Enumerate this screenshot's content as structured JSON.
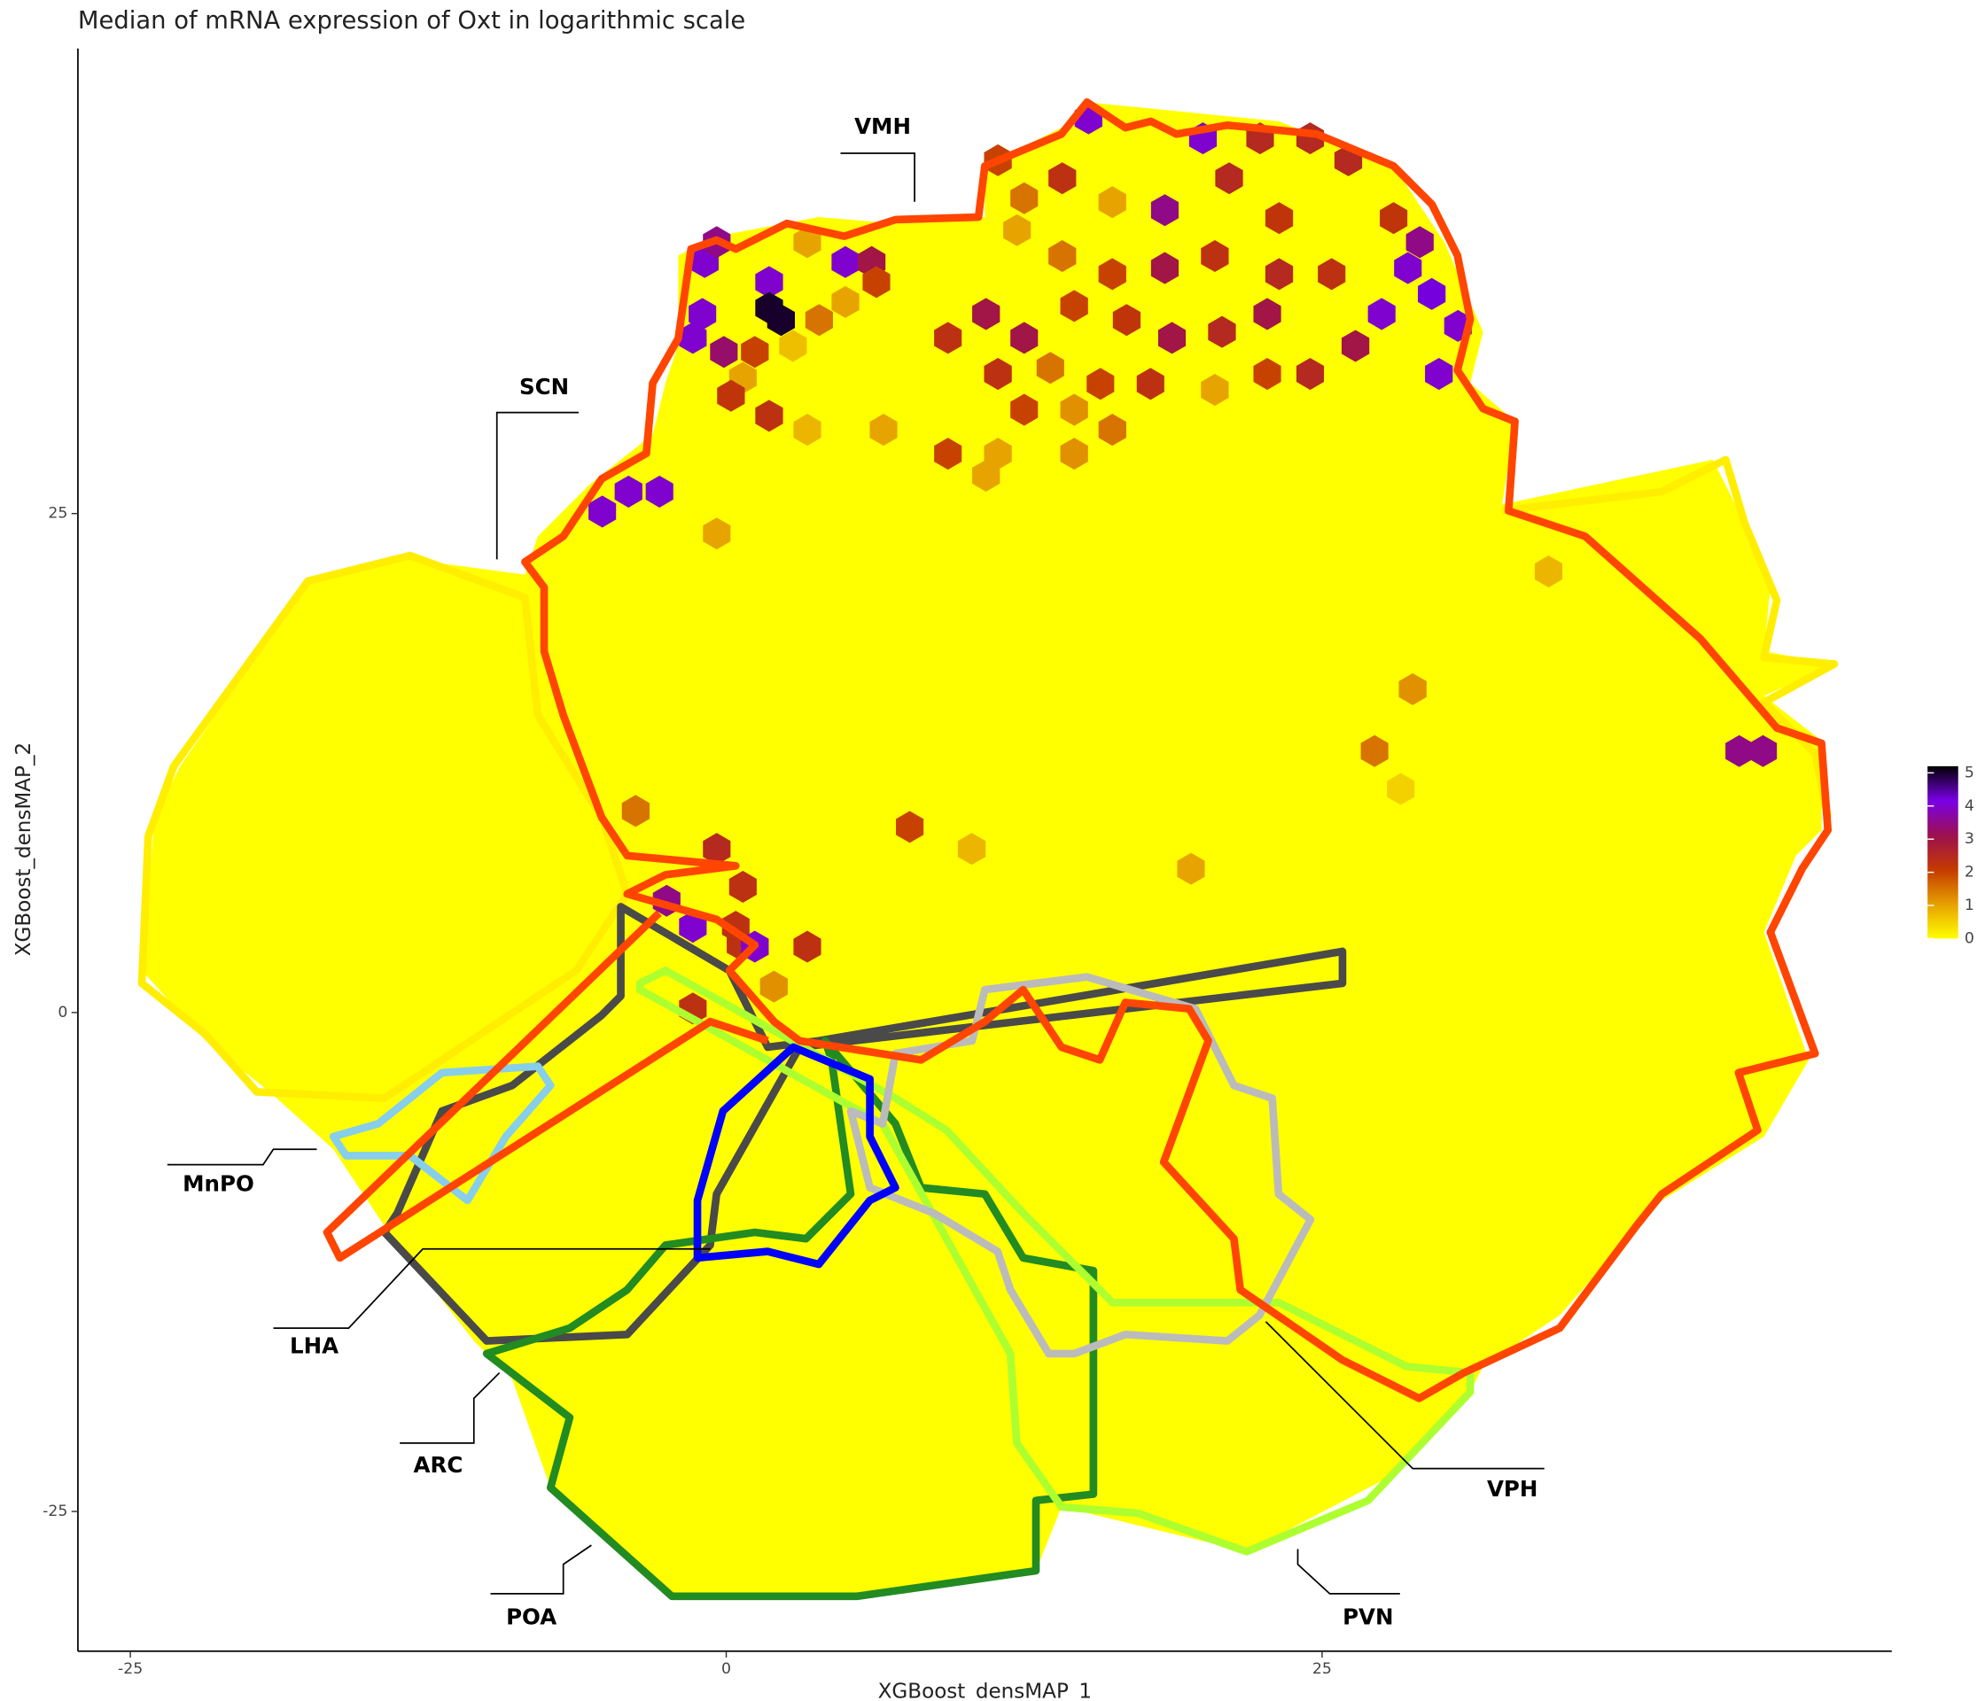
{
  "chart_data": {
    "type": "hexbin",
    "title": "Median of mRNA expression of Oxt in logarithmic scale",
    "x_label": "XGBoost_densMAP_1",
    "y_label": "XGBoost_densMAP_2",
    "xlim": [
      -27.2,
      48.9
    ],
    "ylim": [
      -32.0,
      48.3
    ],
    "xticks": [
      -25,
      0,
      25
    ],
    "yticks": [
      -25,
      0,
      25
    ],
    "clim": [
      0,
      5.2
    ],
    "cticks": [
      0,
      1,
      2,
      3,
      4,
      5
    ],
    "colors": [
      "#ffff00",
      "#e6a000",
      "#c43a00",
      "#9c1050",
      "#7a00e6",
      "#000000"
    ],
    "annotations": [
      {
        "text": "VMH"
      },
      {
        "text": "SCN"
      },
      {
        "text": "MnPO"
      },
      {
        "text": "LHA"
      },
      {
        "text": "ARC"
      },
      {
        "text": "POA"
      },
      {
        "text": "VPH"
      },
      {
        "text": "PVN"
      }
    ],
    "x": [
      15.2,
      20.0,
      22.4,
      24.5,
      26.1,
      11.4,
      12.5,
      14.1,
      16.2,
      18.4,
      21.1,
      23.2,
      28.0,
      29.1,
      28.6,
      29.6,
      30.7,
      27.5,
      26.4,
      29.9,
      12.2,
      14.1,
      16.2,
      18.4,
      20.5,
      23.2,
      25.4,
      9.3,
      10.9,
      12.5,
      14.6,
      16.8,
      18.7,
      20.8,
      22.7,
      11.4,
      13.6,
      15.7,
      17.8,
      20.5,
      22.7,
      24.5,
      12.5,
      14.6,
      16.2,
      11.4,
      14.6,
      10.9,
      9.3,
      6.6,
      3.4,
      -0.4,
      -0.9,
      -0.4,
      1.8,
      1.8,
      2.3,
      3.4,
      5.0,
      6.1,
      6.3,
      5.0,
      3.9,
      2.8,
      -1.0,
      -1.4,
      -0.1,
      1.2,
      0.7,
      0.2,
      1.8,
      -5.2,
      -4.1,
      -2.8,
      34.5,
      28.8,
      27.2,
      28.3,
      42.5,
      43.5,
      7.7,
      19.5,
      10.3,
      -3.8,
      -1.4,
      -2.5,
      -0.4,
      0.7,
      0.4,
      0.6,
      1.2,
      3.4,
      2.0,
      -1.4
    ],
    "y": [
      44.8,
      43.8,
      43.8,
      43.8,
      42.7,
      42.7,
      40.8,
      41.8,
      40.6,
      40.2,
      41.8,
      39.8,
      39.8,
      38.6,
      37.3,
      36.0,
      34.4,
      35.0,
      33.4,
      32.0,
      39.2,
      37.9,
      37.0,
      37.3,
      37.9,
      37.0,
      37.0,
      33.8,
      35.0,
      33.8,
      35.4,
      34.7,
      33.8,
      34.1,
      35.0,
      32.0,
      32.3,
      31.5,
      31.5,
      31.2,
      32.0,
      32.0,
      30.2,
      30.2,
      29.2,
      28.0,
      28.0,
      26.9,
      28.0,
      29.2,
      29.2,
      24.0,
      37.6,
      38.6,
      36.6,
      35.3,
      34.7,
      38.6,
      37.6,
      37.6,
      36.6,
      35.6,
      34.7,
      33.4,
      35.0,
      33.8,
      33.1,
      33.1,
      31.8,
      30.9,
      29.9,
      25.1,
      26.1,
      26.1,
      22.1,
      16.2,
      13.1,
      11.2,
      13.1,
      13.1,
      9.3,
      7.2,
      8.2,
      10.1,
      4.3,
      5.6,
      8.2,
      6.3,
      4.3,
      3.4,
      3.3,
      3.3,
      1.3,
      0.2
    ],
    "values": [
      4,
      4,
      2.5,
      2.5,
      2.5,
      2,
      1.5,
      2.3,
      1,
      3.5,
      2.5,
      2.2,
      2.2,
      3.5,
      4,
      4.2,
      4,
      4,
      3,
      4,
      1,
      1.5,
      2,
      3,
      2.3,
      2.5,
      2.3,
      2.3,
      3,
      3,
      2,
      2.2,
      3,
      2.5,
      3,
      2.3,
      1.5,
      2,
      2.3,
      1,
      2,
      2.5,
      2,
      1.2,
      1.5,
      1,
      1.2,
      1,
      2,
      1,
      0.8,
      1,
      4,
      3.5,
      4,
      5,
      5,
      1,
      4,
      3,
      2,
      1,
      1.5,
      0.7,
      4,
      4,
      3.3,
      2,
      1,
      2.2,
      2.3,
      4,
      4,
      4,
      0.8,
      1.2,
      1.5,
      0.5,
      3.5,
      3.5,
      2,
      1,
      0.8,
      1.5,
      4,
      3.5,
      2.5,
      2.3,
      2.3,
      2.3,
      4,
      2.3,
      1.2,
      2.3
    ]
  }
}
